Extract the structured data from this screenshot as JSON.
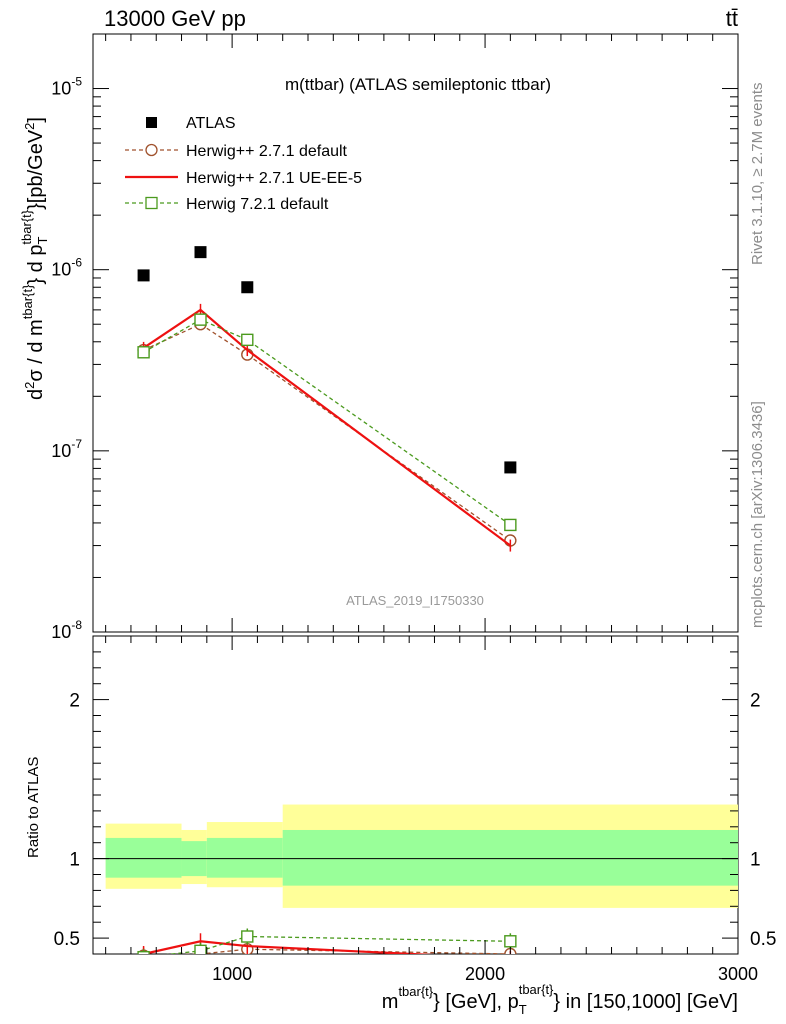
{
  "header": {
    "energy_label": "13000 GeV pp",
    "process_label": "tt̄",
    "plot_title": "m(ttbar) (ATLAS semileptonic ttbar)",
    "analysis_id": "ATLAS_2019_I1750330",
    "rivet_label": "Rivet 3.1.10, ≥ 2.7M events",
    "source_label": "mcplots.cern.ch [arXiv:1306.3436]"
  },
  "axes": {
    "xlabel": "m^{tbar{t}} [GeV], p_T^{tbar{t}} in [150,1000] [GeV]",
    "xlabel_parts": {
      "a": "m",
      "a_sup": "tbar{t}",
      "b": "} [GeV], p",
      "b_sub": "T",
      "b_sup": "tbar{t}",
      "c": "} in [150,1000] [GeV]"
    },
    "ylabel_main": "d²σ / d m^{tbar{t}} d p_T^{tbar{t}} [pb/GeV²]",
    "ylabel_ratio": "Ratio to ATLAS",
    "x_ticks": [
      "1000",
      "2000",
      "3000"
    ],
    "y_main_ticks": [
      "10^-8",
      "10^-7",
      "10^-6",
      "10^-5"
    ],
    "y_ratio_ticks": [
      "0.5",
      "1",
      "2"
    ]
  },
  "legend": {
    "atlas": "ATLAS",
    "herwig_default": "Herwig++ 2.7.1 default",
    "herwig_ueee5": "Herwig++ 2.7.1 UE-EE-5",
    "herwig72": "Herwig 7.2.1 default"
  },
  "chart_data": {
    "type": "scatter",
    "x_scale": "linear",
    "y_scale": "log",
    "xlim": [
      450,
      3000
    ],
    "ylim": [
      1e-08,
      2e-05
    ],
    "ratio_ylim": [
      0.4,
      2.4
    ],
    "bins": [
      [
        500,
        800
      ],
      [
        800,
        900
      ],
      [
        900,
        1200
      ],
      [
        1200,
        3000
      ]
    ],
    "series": [
      {
        "name": "ATLAS",
        "color": "#000000",
        "marker": "square-filled",
        "x": [
          650,
          875,
          1060,
          2100
        ],
        "y": [
          9.3e-07,
          1.25e-06,
          8e-07,
          8.1e-08
        ]
      },
      {
        "name": "Herwig++ 2.7.1 default",
        "color": "#a0522d",
        "marker": "circle-open",
        "dash": "dashed",
        "x": [
          650,
          875,
          1060,
          2100
        ],
        "y": [
          3.6e-07,
          5e-07,
          3.4e-07,
          3.2e-08
        ],
        "ratio": [
          0.39,
          0.4,
          0.43,
          0.4
        ]
      },
      {
        "name": "Herwig++ 2.7.1 UE-EE-5",
        "color": "#ee1111",
        "marker": "none",
        "dash": "solid",
        "x": [
          650,
          875,
          1060,
          2100
        ],
        "y": [
          3.7e-07,
          6e-07,
          3.6e-07,
          3e-08
        ],
        "ratio": [
          0.4,
          0.48,
          0.45,
          0.37
        ]
      },
      {
        "name": "Herwig 7.2.1 default",
        "color": "#4b9a1e",
        "marker": "square-open",
        "dash": "dashed",
        "x": [
          650,
          875,
          1060,
          2100
        ],
        "y": [
          3.5e-07,
          5.3e-07,
          4.1e-07,
          3.9e-08
        ],
        "ratio": [
          0.38,
          0.42,
          0.51,
          0.48
        ]
      }
    ],
    "ratio_band_green": [
      [
        0.88,
        1.13
      ],
      [
        0.89,
        1.11
      ],
      [
        0.88,
        1.13
      ],
      [
        0.83,
        1.18
      ]
    ],
    "ratio_band_yellow": [
      [
        0.81,
        1.22
      ],
      [
        0.84,
        1.18
      ],
      [
        0.82,
        1.23
      ],
      [
        0.69,
        1.34
      ]
    ]
  }
}
